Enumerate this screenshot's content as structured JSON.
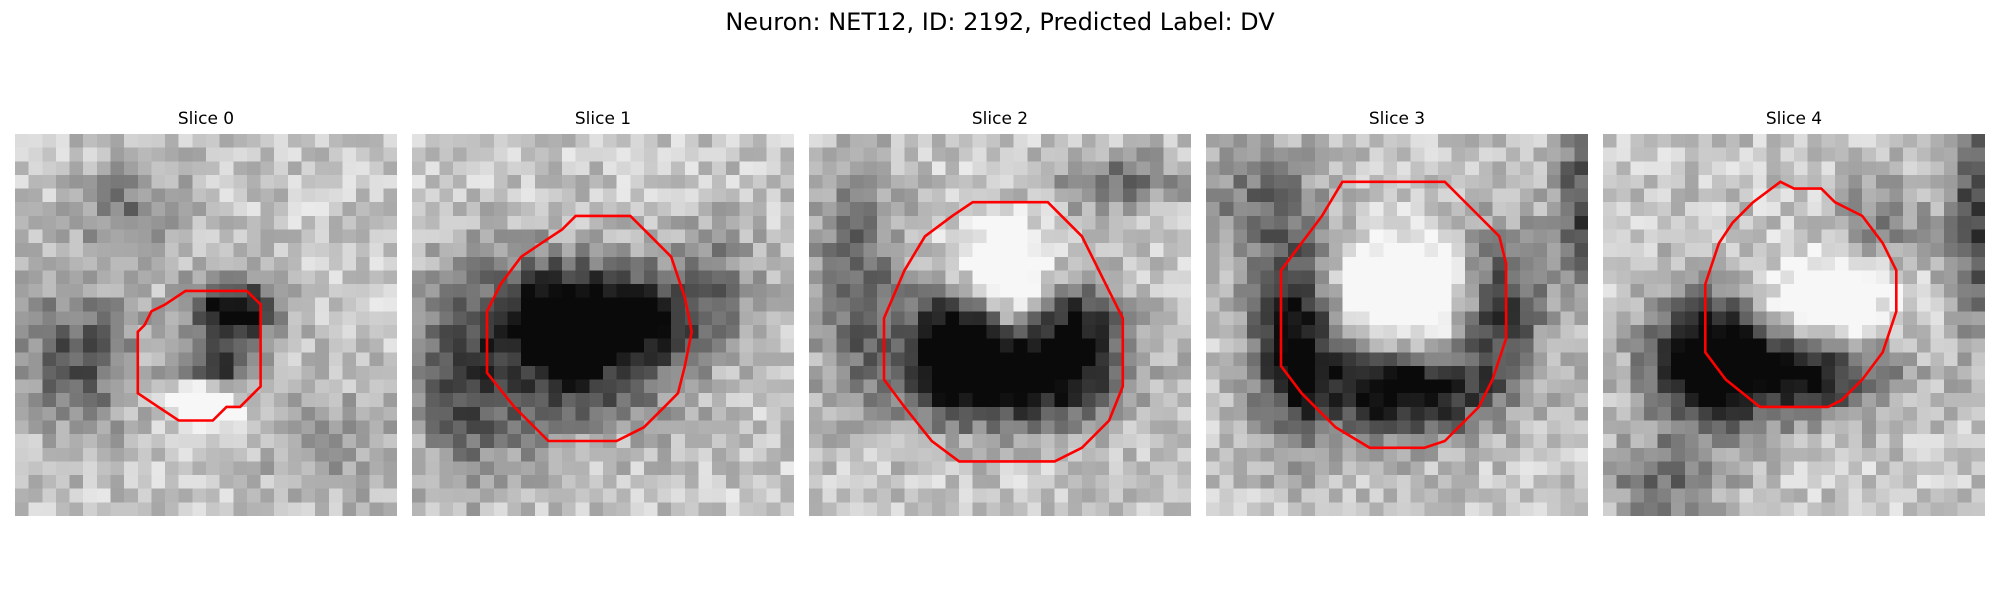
{
  "figure": {
    "title": "Neuron: NET12, ID: 2192, Predicted Label: DV"
  },
  "contour_color": "#ff0000",
  "panels": [
    {
      "title": "Slice 0"
    },
    {
      "title": "Slice 1"
    },
    {
      "title": "Slice 2"
    },
    {
      "title": "Slice 3"
    },
    {
      "title": "Slice 4"
    }
  ]
}
